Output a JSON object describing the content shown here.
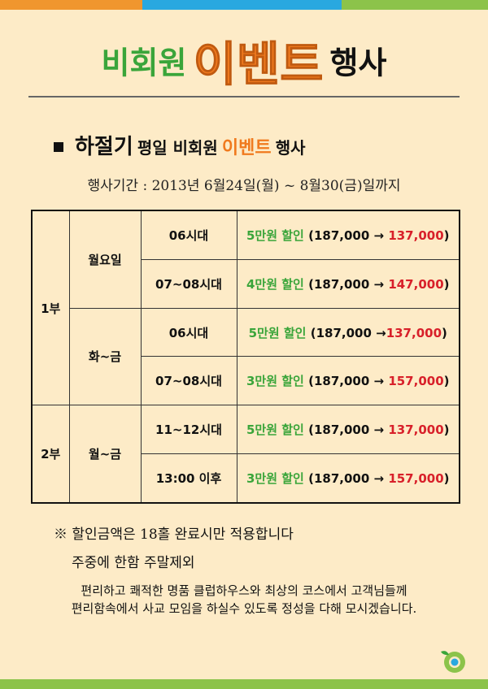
{
  "colors": {
    "top_orange": "#f0962e",
    "top_blue": "#29a8e0",
    "top_green": "#8cc34a",
    "title_green": "#3aa53a",
    "accent_orange": "#f07a1e",
    "price_red": "#d8202a",
    "background": "#fdebc7"
  },
  "header": {
    "part1": "비회원",
    "part2": "이벤트",
    "part3": "행사"
  },
  "subtitle": {
    "bullet_icon": "square-bullet",
    "part1": "하절기",
    "part2": "평일 비회원",
    "part3": "이벤트",
    "part4": "행사"
  },
  "period": "행사기간 : 2013년 6월24일(월) ~ 8월30(금)일까지",
  "table": {
    "sessions": [
      {
        "label": "1부",
        "groups": [
          {
            "day": "월요일",
            "rows": [
              {
                "time": "06시대",
                "discount": "5만원 할인",
                "price_open": "(187,000 → ",
                "price_new": "137,000",
                "price_close": ")"
              },
              {
                "time": "07~08시대",
                "discount": "4만원 할인",
                "price_open": "(187,000 → ",
                "price_new": "147,000",
                "price_close": ")"
              }
            ]
          },
          {
            "day": "화~금",
            "rows": [
              {
                "time": "06시대",
                "discount": "5만원 할인",
                "price_open": "(187,000 →",
                "price_new": "137,000",
                "price_close": ")"
              },
              {
                "time": "07~08시대",
                "discount": "3만원 할인",
                "price_open": "(187,000 → ",
                "price_new": "157,000",
                "price_close": ")"
              }
            ]
          }
        ]
      },
      {
        "label": "2부",
        "groups": [
          {
            "day": "월~금",
            "rows": [
              {
                "time": "11~12시대",
                "discount": "5만원 할인",
                "price_open": "(187,000 → ",
                "price_new": "137,000",
                "price_close": ")"
              },
              {
                "time": "13:00 이후",
                "discount": "3만원 할인",
                "price_open": "(187,000 → ",
                "price_new": "157,000",
                "price_close": ")"
              }
            ]
          }
        ]
      }
    ]
  },
  "notes": {
    "line1": "※ 할인금액은 18홀 완료시만 적용합니다",
    "line2": "주중에 한함 주말제외"
  },
  "closing": {
    "line1": "편리하고 쾌적한 명품 클럽하우스와 최상의 코스에서 고객님들께",
    "line2": "편리함속에서 사교 모임을 하실수 있도록 정성을 다해 모시겠습니다."
  },
  "logo_icon": "club-logo-icon"
}
